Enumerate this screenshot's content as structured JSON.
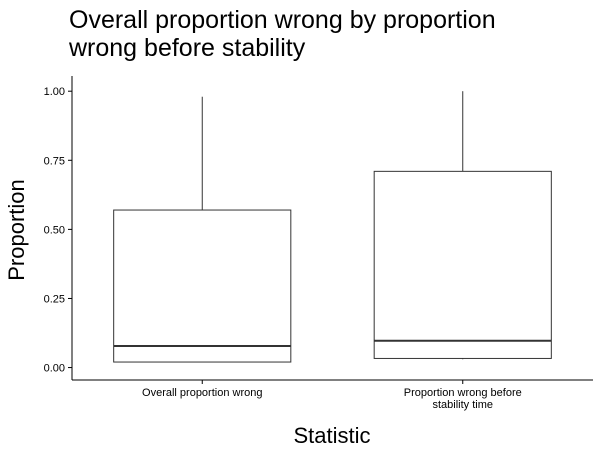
{
  "chart_data": {
    "type": "boxplot",
    "title_lines": [
      "Overall proportion wrong by proportion",
      "wrong before stability"
    ],
    "xlabel": "Statistic",
    "ylabel": "Proportion",
    "ylim": [
      -0.045,
      1.055
    ],
    "yticks": [
      {
        "value": 0.0,
        "label": "0.00"
      },
      {
        "value": 0.25,
        "label": "0.25"
      },
      {
        "value": 0.5,
        "label": "0.50"
      },
      {
        "value": 0.75,
        "label": "0.75"
      },
      {
        "value": 1.0,
        "label": "1.00"
      }
    ],
    "grid": false,
    "categories": [
      {
        "label_lines": [
          "Overall proportion wrong"
        ]
      },
      {
        "label_lines": [
          "Proportion wrong before",
          "stability time"
        ]
      }
    ],
    "boxes": [
      {
        "min": 0.02,
        "q1": 0.02,
        "median": 0.078,
        "q3": 0.57,
        "max": 0.98
      },
      {
        "min": 0.03,
        "q1": 0.033,
        "median": 0.097,
        "q3": 0.71,
        "max": 1.0
      }
    ],
    "colors": {
      "stroke": "#333333",
      "axis": "#000000",
      "background": "#ffffff"
    }
  }
}
